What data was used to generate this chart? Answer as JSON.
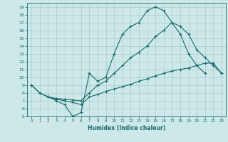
{
  "xlabel": "Humidex (Indice chaleur)",
  "ylabel": "",
  "bg_color": "#cce8e8",
  "line_color": "#1a6b6b",
  "grid_color": "#aacccc",
  "ylim": [
    5,
    19.5
  ],
  "xlim": [
    -0.5,
    23.5
  ],
  "yticks": [
    5,
    6,
    7,
    8,
    9,
    10,
    11,
    12,
    13,
    14,
    15,
    16,
    17,
    18,
    19
  ],
  "xticks": [
    0,
    1,
    2,
    3,
    4,
    5,
    6,
    7,
    8,
    9,
    10,
    11,
    12,
    13,
    14,
    15,
    16,
    17,
    18,
    19,
    20,
    21,
    22,
    23
  ],
  "line1_x": [
    0,
    1,
    2,
    3,
    4,
    5,
    6,
    7,
    8,
    9,
    10,
    11,
    12,
    13,
    14,
    15,
    16,
    17,
    18,
    19,
    20,
    21
  ],
  "line1_y": [
    9.0,
    8.0,
    7.5,
    7.0,
    6.5,
    5.0,
    5.5,
    10.5,
    9.5,
    10.0,
    13.0,
    15.5,
    16.5,
    17.0,
    18.5,
    19.0,
    18.5,
    17.0,
    15.5,
    13.0,
    11.5,
    10.5
  ],
  "line2_x": [
    0,
    1,
    2,
    3,
    4,
    5,
    6,
    7,
    8,
    9,
    10,
    11,
    12,
    13,
    14,
    15,
    16,
    17,
    18,
    19,
    20,
    21,
    22,
    23
  ],
  "line2_y": [
    9.0,
    8.0,
    7.5,
    7.3,
    7.2,
    7.1,
    7.0,
    8.0,
    9.0,
    9.5,
    10.5,
    11.5,
    12.5,
    13.2,
    14.0,
    15.2,
    16.0,
    17.0,
    16.5,
    15.5,
    13.5,
    12.5,
    11.5,
    10.5
  ],
  "line3_x": [
    2,
    3,
    4,
    5,
    6,
    7,
    8,
    9,
    10,
    11,
    12,
    13,
    14,
    15,
    16,
    17,
    18,
    19,
    20,
    21,
    22,
    23
  ],
  "line3_y": [
    7.5,
    7.2,
    7.0,
    6.8,
    6.5,
    7.5,
    7.8,
    8.2,
    8.5,
    8.8,
    9.1,
    9.5,
    9.8,
    10.2,
    10.5,
    10.8,
    11.0,
    11.2,
    11.5,
    11.8,
    11.8,
    10.5
  ]
}
